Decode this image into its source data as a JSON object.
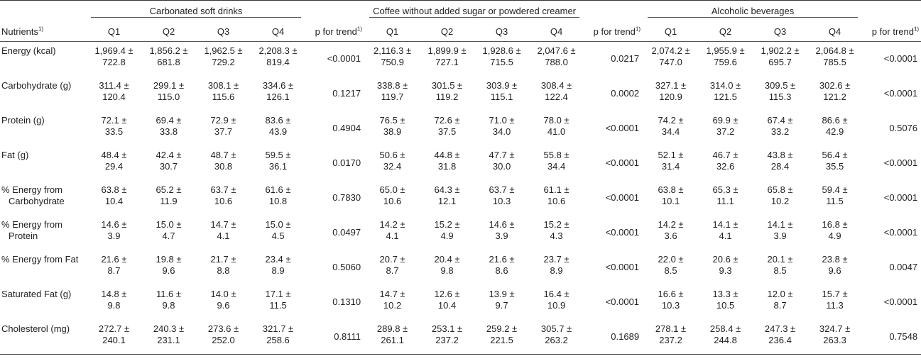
{
  "table": {
    "row_label_header": "Nutrients",
    "row_label_sup": "1)",
    "groups": [
      "Carbonated soft drinks",
      "Coffee without added sugar or powdered creamer",
      "Alcoholic beverages"
    ],
    "subheaders": [
      "Q1",
      "Q2",
      "Q3",
      "Q4",
      "p for trend"
    ],
    "trend_sup": "1)",
    "rows": [
      {
        "label": [
          "Energy (kcal)"
        ],
        "groups": [
          {
            "q": [
              [
                "1,969.4 ±",
                "722.8"
              ],
              [
                "1,856.2 ±",
                "681.8"
              ],
              [
                "1,962.5 ±",
                "729.2"
              ],
              [
                "2,208.3 ±",
                "819.4"
              ]
            ],
            "p": "<0.0001"
          },
          {
            "q": [
              [
                "2,116.3 ±",
                "750.9"
              ],
              [
                "1,899.9 ±",
                "727.1"
              ],
              [
                "1,928.6 ±",
                "715.5"
              ],
              [
                "2,047.6 ±",
                "788.0"
              ]
            ],
            "p": "0.0217"
          },
          {
            "q": [
              [
                "2,074.2 ±",
                "747.0"
              ],
              [
                "1,955.9 ±",
                "759.6"
              ],
              [
                "1,902.2 ±",
                "695.7"
              ],
              [
                "2,064.8 ±",
                "785.5"
              ]
            ],
            "p": "<0.0001"
          }
        ]
      },
      {
        "label": [
          "Carbohydrate (g)"
        ],
        "groups": [
          {
            "q": [
              [
                "311.4 ±",
                "120.4"
              ],
              [
                "299.1 ±",
                "115.0"
              ],
              [
                "308.1 ±",
                "115.6"
              ],
              [
                "334.6 ±",
                "126.1"
              ]
            ],
            "p": "0.1217"
          },
          {
            "q": [
              [
                "338.8 ±",
                "119.7"
              ],
              [
                "301.5 ±",
                "119.2"
              ],
              [
                "303.9 ±",
                "115.1"
              ],
              [
                "308.4 ±",
                "122.4"
              ]
            ],
            "p": "0.0002"
          },
          {
            "q": [
              [
                "327.1 ±",
                "120.9"
              ],
              [
                "314.0 ±",
                "121.5"
              ],
              [
                "309.5 ±",
                "115.3"
              ],
              [
                "302.6 ±",
                "121.2"
              ]
            ],
            "p": "<0.0001"
          }
        ]
      },
      {
        "label": [
          "Protein (g)"
        ],
        "groups": [
          {
            "q": [
              [
                "72.1 ±",
                "33.5"
              ],
              [
                "69.4 ±",
                "33.8"
              ],
              [
                "72.9 ±",
                "37.7"
              ],
              [
                "83.6 ±",
                "43.9"
              ]
            ],
            "p": "0.4904"
          },
          {
            "q": [
              [
                "76.5 ±",
                "38.9"
              ],
              [
                "72.6 ±",
                "37.5"
              ],
              [
                "71.0 ±",
                "34.0"
              ],
              [
                "78.0 ±",
                "41.0"
              ]
            ],
            "p": "<0.0001"
          },
          {
            "q": [
              [
                "74.2 ±",
                "34.4"
              ],
              [
                "69.9 ±",
                "37.2"
              ],
              [
                "67.4 ±",
                "33.2"
              ],
              [
                "86.6 ±",
                "42.9"
              ]
            ],
            "p": "0.5076"
          }
        ]
      },
      {
        "label": [
          "Fat (g)"
        ],
        "groups": [
          {
            "q": [
              [
                "48.4 ±",
                "29.4"
              ],
              [
                "42.4 ±",
                "30.7"
              ],
              [
                "48.7 ±",
                "30.8"
              ],
              [
                "59.5 ±",
                "36.1"
              ]
            ],
            "p": "0.0170"
          },
          {
            "q": [
              [
                "50.6 ±",
                "32.4"
              ],
              [
                "44.8 ±",
                "31.8"
              ],
              [
                "47.7 ±",
                "30.0"
              ],
              [
                "55.8 ±",
                "34.4"
              ]
            ],
            "p": "<0.0001"
          },
          {
            "q": [
              [
                "52.1 ±",
                "31.4"
              ],
              [
                "46.7 ±",
                "32.6"
              ],
              [
                "43.8 ±",
                "28.4"
              ],
              [
                "56.4 ±",
                "35.5"
              ]
            ],
            "p": "<0.0001"
          }
        ]
      },
      {
        "label": [
          "% Energy from",
          "Carbohydrate"
        ],
        "groups": [
          {
            "q": [
              [
                "63.8 ±",
                "10.4"
              ],
              [
                "65.2 ±",
                "11.9"
              ],
              [
                "63.7 ±",
                "10.6"
              ],
              [
                "61.6 ±",
                "10.8"
              ]
            ],
            "p": "0.7830"
          },
          {
            "q": [
              [
                "65.0 ±",
                "10.6"
              ],
              [
                "64.3 ±",
                "12.1"
              ],
              [
                "63.7 ±",
                "10.3"
              ],
              [
                "61.1 ±",
                "10.6"
              ]
            ],
            "p": "<0.0001"
          },
          {
            "q": [
              [
                "63.8 ±",
                "10.1"
              ],
              [
                "65.3 ±",
                "11.1"
              ],
              [
                "65.8 ±",
                "10.2"
              ],
              [
                "59.4 ±",
                "11.5"
              ]
            ],
            "p": "<0.0001"
          }
        ]
      },
      {
        "label": [
          "% Energy from",
          "Protein"
        ],
        "groups": [
          {
            "q": [
              [
                "14.6 ±",
                "3.9"
              ],
              [
                "15.0 ±",
                "4.7"
              ],
              [
                "14.7 ±",
                "4.1"
              ],
              [
                "15.0 ±",
                "4.5"
              ]
            ],
            "p": "0.0497"
          },
          {
            "q": [
              [
                "14.2 ±",
                "4.1"
              ],
              [
                "15.2 ±",
                "4.9"
              ],
              [
                "14.6 ±",
                "3.9"
              ],
              [
                "15.2 ±",
                "4.3"
              ]
            ],
            "p": "<0.0001"
          },
          {
            "q": [
              [
                "14.2 ±",
                "3.6"
              ],
              [
                "14.1 ±",
                "4.1"
              ],
              [
                "14.1 ±",
                "3.9"
              ],
              [
                "16.8 ±",
                "4.9"
              ]
            ],
            "p": "<0.0001"
          }
        ]
      },
      {
        "label": [
          "% Energy from Fat"
        ],
        "groups": [
          {
            "q": [
              [
                "21.6 ±",
                "8.7"
              ],
              [
                "19.8 ±",
                "9.6"
              ],
              [
                "21.7 ±",
                "8.8"
              ],
              [
                "23.4 ±",
                "8.9"
              ]
            ],
            "p": "0.5060"
          },
          {
            "q": [
              [
                "20.7 ±",
                "8.7"
              ],
              [
                "20.4 ±",
                "9.8"
              ],
              [
                "21.6 ±",
                "8.6"
              ],
              [
                "23.7 ±",
                "8.9"
              ]
            ],
            "p": "<0.0001"
          },
          {
            "q": [
              [
                "22.0 ±",
                "8.5"
              ],
              [
                "20.6 ±",
                "9.3"
              ],
              [
                "20.1 ±",
                "8.5"
              ],
              [
                "23.8 ±",
                "9.6"
              ]
            ],
            "p": "0.0047"
          }
        ]
      },
      {
        "label": [
          "Saturated Fat (g)"
        ],
        "groups": [
          {
            "q": [
              [
                "14.8 ±",
                "9.8"
              ],
              [
                "11.6 ±",
                "9.8"
              ],
              [
                "14.0 ±",
                "9.6"
              ],
              [
                "17.1 ±",
                "11.5"
              ]
            ],
            "p": "0.1310"
          },
          {
            "q": [
              [
                "14.7 ±",
                "10.2"
              ],
              [
                "12.6 ±",
                "10.4"
              ],
              [
                "13.9 ±",
                "9.7"
              ],
              [
                "16.4 ±",
                "10.9"
              ]
            ],
            "p": "<0.0001"
          },
          {
            "q": [
              [
                "16.6 ±",
                "10.3"
              ],
              [
                "13.3 ±",
                "10.5"
              ],
              [
                "12.0 ±",
                "8.7"
              ],
              [
                "15.7 ±",
                "11.3"
              ]
            ],
            "p": "<0.0001"
          }
        ]
      },
      {
        "label": [
          "Cholesterol (mg)"
        ],
        "groups": [
          {
            "q": [
              [
                "272.7 ±",
                "240.1"
              ],
              [
                "240.3 ±",
                "231.1"
              ],
              [
                "273.6 ±",
                "252.0"
              ],
              [
                "321.7 ±",
                "258.6"
              ]
            ],
            "p": "0.8111"
          },
          {
            "q": [
              [
                "289.8 ±",
                "261.1"
              ],
              [
                "253.1 ±",
                "237.2"
              ],
              [
                "259.2 ±",
                "221.5"
              ],
              [
                "305.7 ±",
                "263.2"
              ]
            ],
            "p": "0.1689"
          },
          {
            "q": [
              [
                "278.1 ±",
                "237.2"
              ],
              [
                "258.4 ±",
                "244.8"
              ],
              [
                "247.3 ±",
                "236.4"
              ],
              [
                "324.7 ±",
                "263.3"
              ]
            ],
            "p": "0.7548"
          }
        ]
      }
    ]
  }
}
